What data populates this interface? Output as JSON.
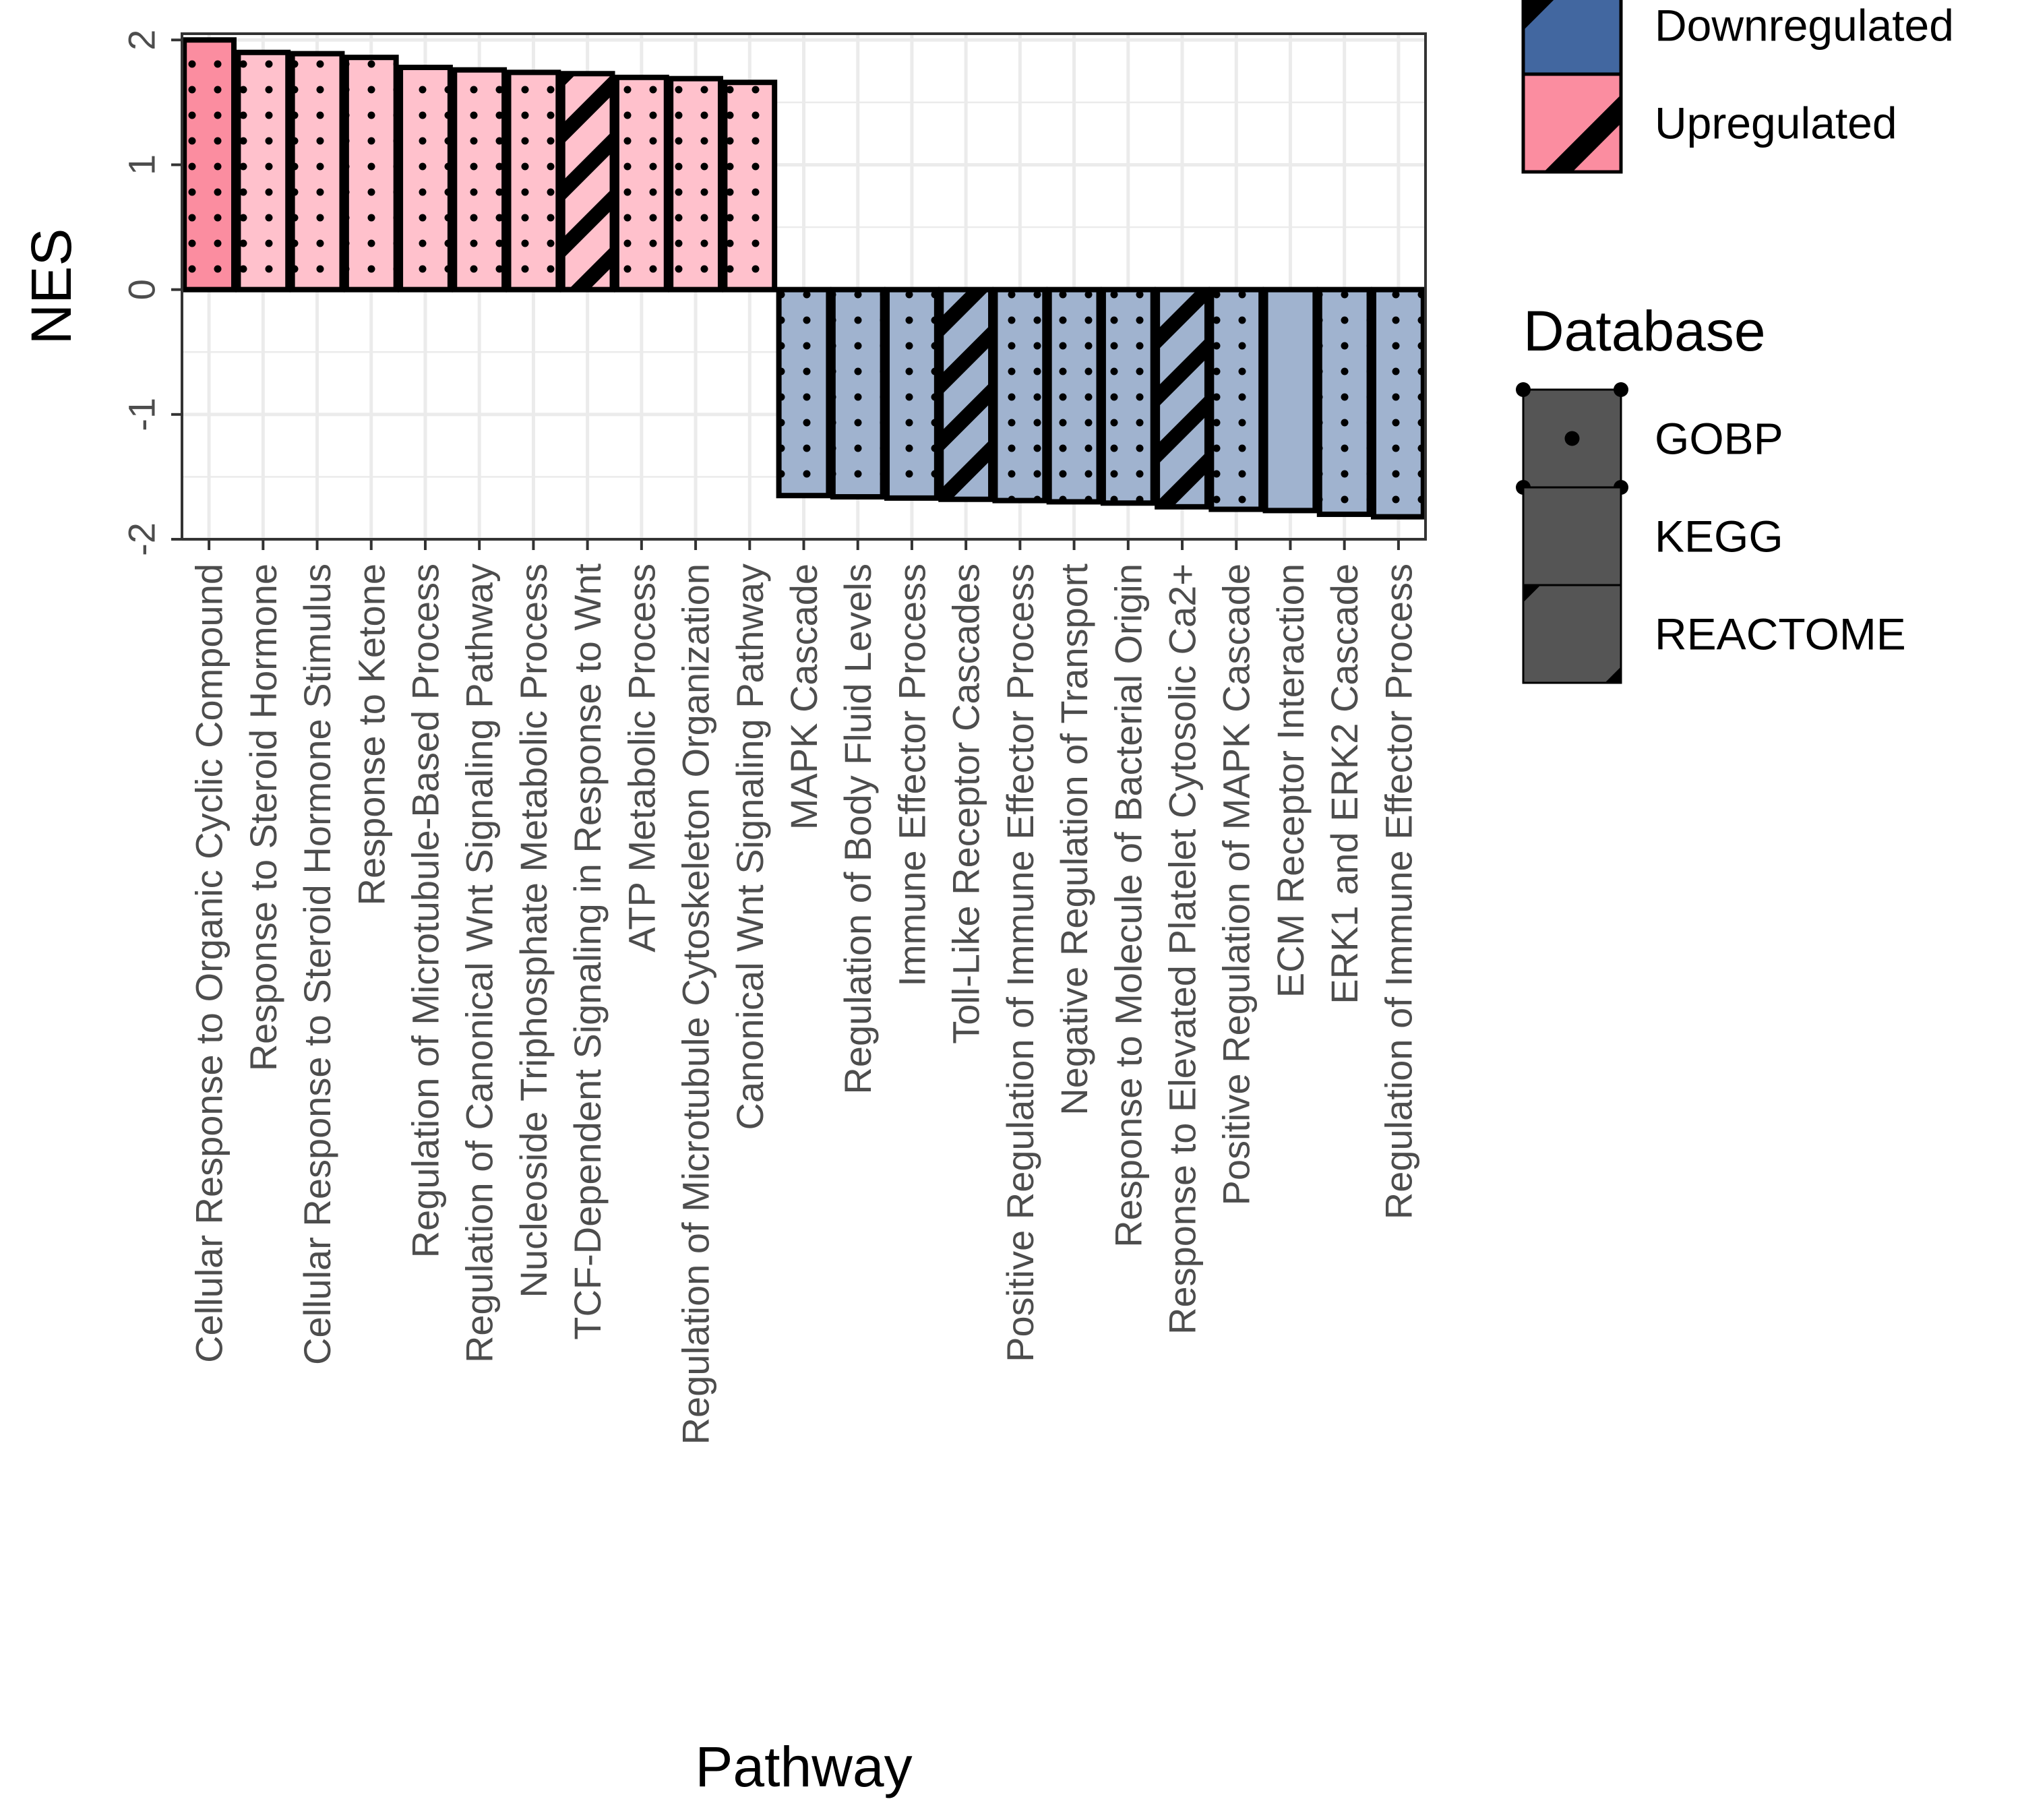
{
  "chart_data": {
    "type": "bar",
    "xlabel": "Pathway",
    "ylabel": "NES",
    "ylim": [
      -2,
      2.05
    ],
    "yticks": [
      -2,
      -1,
      0,
      1,
      2
    ],
    "grid": true,
    "legend_position": "right",
    "categories": [
      "Cellular Response to Organic Cyclic Compound",
      "Response to Steroid Hormone",
      "Cellular Response to Steroid Hormone Stimulus",
      "Response to Ketone",
      "Regulation of Microtubule-Based Process",
      "Regulation of Canonical Wnt Signaling Pathway",
      "Nucleoside Triphosphate Metabolic Process",
      "TCF-Dependent Signaling in Response to Wnt",
      "ATP Metabolic Process",
      "Regulation of Microtubule Cytoskeleton Organization",
      "Canonical Wnt Signaling Pathway",
      "MAPK Cascade",
      "Regulation of Body Fluid Levels",
      "Immune Effector Process",
      "Toll-Like Receptor Cascades",
      "Positive Regulation of Immune Effector Process",
      "Negative Regulation of Transport",
      "Response to Molecule of Bacterial Origin",
      "Response to Elevated Platelet Cytosolic Ca2+",
      "Positive Regulation of MAPK Cascade",
      "ECM Receptor Interaction",
      "ERK1 and ERK2 Cascade",
      "Regulation of Immune Effector Process"
    ],
    "values": [
      2.0,
      1.9,
      1.89,
      1.86,
      1.78,
      1.76,
      1.74,
      1.73,
      1.7,
      1.69,
      1.66,
      -1.65,
      -1.66,
      -1.67,
      -1.68,
      -1.69,
      -1.7,
      -1.71,
      -1.74,
      -1.76,
      -1.77,
      -1.8,
      -1.82
    ],
    "database": [
      "GOBP",
      "GOBP",
      "GOBP",
      "GOBP",
      "GOBP",
      "GOBP",
      "GOBP",
      "REACTOME",
      "GOBP",
      "GOBP",
      "GOBP",
      "GOBP",
      "GOBP",
      "GOBP",
      "REACTOME",
      "GOBP",
      "GOBP",
      "GOBP",
      "REACTOME",
      "GOBP",
      "KEGG",
      "GOBP",
      "GOBP"
    ],
    "direction_legend": {
      "entries": [
        {
          "label": "Downregulated",
          "color": "#4267a0"
        },
        {
          "label": "Upregulated",
          "color": "#fb8da0"
        }
      ]
    },
    "database_legend": {
      "title": "Database",
      "entries": [
        "GOBP",
        "KEGG",
        "REACTOME"
      ]
    },
    "colors": {
      "up_bar": "#ffc1cc",
      "up_bar_first": "#fb8da0",
      "down_bar": "#a0b3cf",
      "legend_pattern_fill": "#555555",
      "grid": "#ebebeb",
      "panel_border": "#333333"
    }
  }
}
